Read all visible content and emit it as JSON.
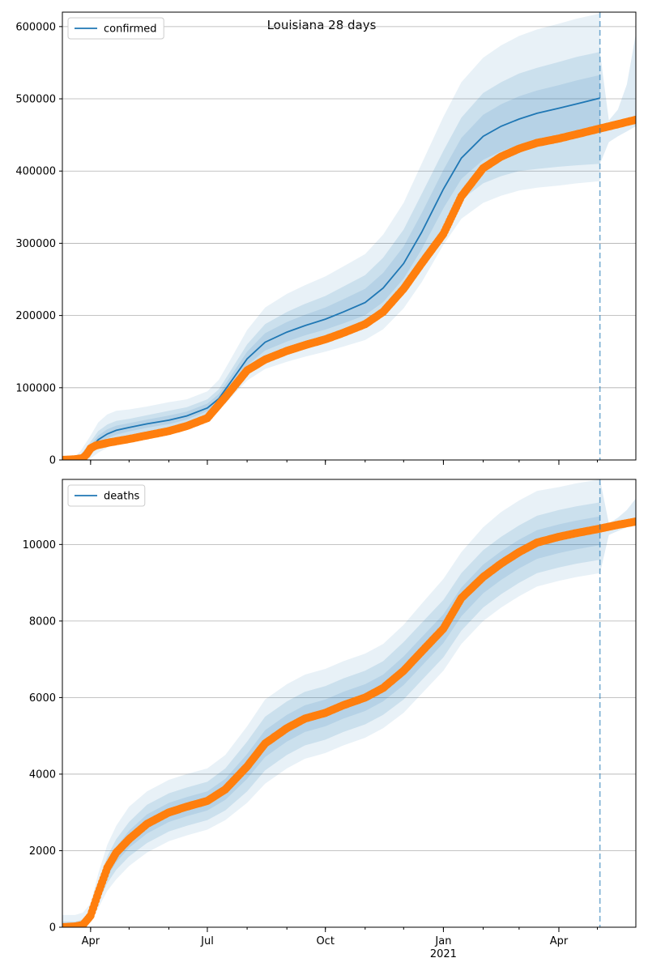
{
  "title": "Louisiana 28 days",
  "colors": {
    "model": "#1f77b4",
    "band": "#1f77b4",
    "observed": "#ff7f0e",
    "forecast_line": "#1f77b4",
    "grid": "#b0b0b0"
  },
  "x_axis": {
    "start": "2020-03-10",
    "end": "2021-05-31",
    "major_ticks": [
      {
        "date": "2020-04-01",
        "label": "Apr",
        "sub": ""
      },
      {
        "date": "2020-07-01",
        "label": "Jul",
        "sub": ""
      },
      {
        "date": "2020-10-01",
        "label": "Oct",
        "sub": ""
      },
      {
        "date": "2021-01-01",
        "label": "Jan",
        "sub": "2021"
      },
      {
        "date": "2021-04-01",
        "label": "Apr",
        "sub": ""
      }
    ]
  },
  "forecast_date": "2021-05-03",
  "chart_data": [
    {
      "type": "line",
      "series_name": "confirmed",
      "legend": "confirmed",
      "legend_position": "upper-left",
      "grid": "horizontal",
      "ylim": [
        0,
        620000
      ],
      "yticks": [
        0,
        100000,
        200000,
        300000,
        400000,
        500000,
        600000
      ],
      "model": {
        "x": [
          "2020-03-10",
          "2020-03-17",
          "2020-03-24",
          "2020-03-31",
          "2020-04-07",
          "2020-04-14",
          "2020-04-21",
          "2020-05-01",
          "2020-05-15",
          "2020-06-01",
          "2020-06-15",
          "2020-07-01",
          "2020-07-10",
          "2020-07-20",
          "2020-08-01",
          "2020-08-15",
          "2020-09-01",
          "2020-09-15",
          "2020-10-01",
          "2020-10-15",
          "2020-11-01",
          "2020-11-15",
          "2020-12-01",
          "2020-12-15",
          "2021-01-01",
          "2021-01-15",
          "2021-02-01",
          "2021-02-15",
          "2021-03-01",
          "2021-03-15",
          "2021-04-01",
          "2021-04-15",
          "2021-05-03"
        ],
        "y": [
          0,
          0,
          2000,
          14000,
          28000,
          36000,
          41000,
          45000,
          50000,
          55000,
          61000,
          72000,
          85000,
          110000,
          140000,
          163000,
          177000,
          186000,
          195000,
          205000,
          218000,
          238000,
          272000,
          315000,
          375000,
          418000,
          448000,
          462000,
          472000,
          480000,
          487000,
          493000,
          501000
        ],
        "bands": [
          {
            "lower": [
              0,
              0,
              0,
              6000,
              17000,
              24000,
              29000,
              34000,
              39000,
              44000,
              51000,
              63000,
              75000,
              97000,
              122000,
              140000,
              151000,
              159000,
              166000,
              173000,
              183000,
              199000,
              230000,
              268000,
              322000,
              360000,
              383000,
              393000,
              400000,
              403000,
              406000,
              408000,
              410000
            ],
            "upper": [
              0,
              0,
              7000,
              23000,
              40000,
              49000,
              54000,
              57000,
              62000,
              68000,
              73000,
              84000,
              98000,
              126000,
              160000,
              188000,
              205000,
              216000,
              227000,
              240000,
              256000,
              280000,
              319000,
              368000,
              428000,
              474000,
              508000,
              523000,
              535000,
              543000,
              551000,
              558000,
              565000
            ]
          },
          {
            "lower": [
              0,
              0,
              0,
              1000,
              10000,
              17000,
              22000,
              27000,
              32000,
              37000,
              44000,
              57000,
              68000,
              88000,
              110000,
              126000,
              136000,
              143000,
              150000,
              157000,
              166000,
              181000,
              210000,
              246000,
              298000,
              334000,
              356000,
              366000,
              373000,
              377000,
              380000,
              383000,
              386000
            ],
            "upper": [
              0,
              0,
              12000,
              31000,
              52000,
              63000,
              68000,
              70000,
              74000,
              80000,
              84000,
              95000,
              111000,
              142000,
              180000,
              211000,
              230000,
              242000,
              254000,
              268000,
              285000,
              312000,
              356000,
              410000,
              475000,
              523000,
              557000,
              574000,
              587000,
              596000,
              604000,
              611000,
              618000
            ]
          }
        ]
      },
      "observed": {
        "x": [
          "2020-03-10",
          "2020-03-20",
          "2020-03-26",
          "2020-03-29",
          "2020-04-01",
          "2020-04-05",
          "2020-04-15",
          "2020-05-01",
          "2020-05-15",
          "2020-06-01",
          "2020-06-15",
          "2020-07-01",
          "2020-07-15",
          "2020-08-01",
          "2020-08-15",
          "2020-09-01",
          "2020-09-15",
          "2020-10-01",
          "2020-10-15",
          "2020-11-01",
          "2020-11-15",
          "2020-12-01",
          "2020-12-15",
          "2021-01-01",
          "2021-01-15",
          "2021-02-01",
          "2021-02-15",
          "2021-03-01",
          "2021-03-15",
          "2021-04-01",
          "2021-04-15",
          "2021-05-01",
          "2021-05-15",
          "2021-05-31"
        ],
        "y": [
          0,
          1000,
          2500,
          8000,
          16000,
          20000,
          24000,
          29000,
          34000,
          40000,
          47000,
          58000,
          87000,
          124000,
          139000,
          151000,
          159000,
          167000,
          176000,
          188000,
          205000,
          237000,
          272000,
          313000,
          365000,
          404000,
          420000,
          431000,
          439000,
          445000,
          451000,
          458000,
          464000,
          471000
        ]
      },
      "projection": {
        "x": [
          "2021-05-03",
          "2021-05-10",
          "2021-05-17",
          "2021-05-24",
          "2021-05-31"
        ],
        "lower": [
          410000,
          440000,
          448000,
          455000,
          462000
        ],
        "upper": [
          565000,
          470000,
          485000,
          520000,
          590000
        ]
      }
    },
    {
      "type": "line",
      "series_name": "deaths",
      "legend": "deaths",
      "legend_position": "upper-left",
      "grid": "horizontal",
      "ylim": [
        0,
        11700
      ],
      "yticks": [
        0,
        2000,
        4000,
        6000,
        8000,
        10000
      ],
      "model": {
        "x": [
          "2020-03-10",
          "2020-03-20",
          "2020-03-26",
          "2020-04-01",
          "2020-04-07",
          "2020-04-14",
          "2020-04-21",
          "2020-05-01",
          "2020-05-15",
          "2020-06-01",
          "2020-06-15",
          "2020-07-01",
          "2020-07-15",
          "2020-08-01",
          "2020-08-15",
          "2020-09-01",
          "2020-09-15",
          "2020-10-01",
          "2020-10-15",
          "2020-11-01",
          "2020-11-15",
          "2020-12-01",
          "2020-12-15",
          "2021-01-01",
          "2021-01-15",
          "2021-02-01",
          "2021-02-15",
          "2021-03-01",
          "2021-03-15",
          "2021-04-01",
          "2021-04-15",
          "2021-05-03"
        ],
        "y": [
          0,
          20,
          60,
          300,
          900,
          1500,
          1900,
          2300,
          2700,
          3000,
          3150,
          3300,
          3600,
          4200,
          4800,
          5200,
          5450,
          5600,
          5800,
          6000,
          6250,
          6700,
          7200,
          7800,
          8500,
          9100,
          9450,
          9750,
          10000,
          10150,
          10250,
          10370
        ],
        "bands": [
          {
            "lower": [
              0,
              0,
              10,
              180,
              650,
              1150,
              1500,
              1850,
              2200,
              2500,
              2650,
              2800,
              3050,
              3550,
              4100,
              4500,
              4750,
              4900,
              5100,
              5300,
              5550,
              5950,
              6450,
              7050,
              7750,
              8350,
              8700,
              9000,
              9250,
              9400,
              9500,
              9600
            ],
            "upper": [
              150,
              150,
              200,
              450,
              1150,
              1850,
              2300,
              2750,
              3200,
              3500,
              3650,
              3800,
              4150,
              4850,
              5500,
              5900,
              6150,
              6300,
              6500,
              6700,
              6950,
              7450,
              7950,
              8550,
              9250,
              9850,
              10200,
              10500,
              10750,
              10900,
              11000,
              11100
            ]
          },
          {
            "lower": [
              0,
              0,
              0,
              120,
              500,
              950,
              1250,
              1600,
              1950,
              2250,
              2400,
              2550,
              2800,
              3250,
              3750,
              4150,
              4400,
              4550,
              4750,
              4950,
              5200,
              5600,
              6100,
              6700,
              7400,
              8000,
              8350,
              8650,
              8900,
              9050,
              9150,
              9250
            ],
            "upper": [
              320,
              320,
              380,
              620,
              1400,
              2150,
              2650,
              3150,
              3550,
              3850,
              4000,
              4150,
              4500,
              5250,
              5950,
              6350,
              6600,
              6750,
              6950,
              7150,
              7400,
              7900,
              8450,
              9100,
              9800,
              10450,
              10850,
              11150,
              11400,
              11500,
              11600,
              11700
            ]
          }
        ]
      },
      "observed": {
        "x": [
          "2020-03-10",
          "2020-03-20",
          "2020-03-26",
          "2020-04-01",
          "2020-04-07",
          "2020-04-14",
          "2020-04-21",
          "2020-05-01",
          "2020-05-15",
          "2020-06-01",
          "2020-06-15",
          "2020-07-01",
          "2020-07-15",
          "2020-08-01",
          "2020-08-15",
          "2020-09-01",
          "2020-09-15",
          "2020-10-01",
          "2020-10-15",
          "2020-11-01",
          "2020-11-15",
          "2020-12-01",
          "2020-12-15",
          "2021-01-01",
          "2021-01-15",
          "2021-02-01",
          "2021-02-15",
          "2021-03-01",
          "2021-03-15",
          "2021-04-01",
          "2021-04-15",
          "2021-05-01",
          "2021-05-15",
          "2021-05-31"
        ],
        "y": [
          0,
          20,
          60,
          300,
          900,
          1550,
          1950,
          2300,
          2700,
          3000,
          3150,
          3300,
          3600,
          4200,
          4800,
          5200,
          5450,
          5600,
          5800,
          6000,
          6250,
          6700,
          7200,
          7800,
          8600,
          9150,
          9500,
          9800,
          10050,
          10200,
          10300,
          10400,
          10500,
          10600
        ]
      },
      "projection": {
        "x": [
          "2021-05-03",
          "2021-05-10",
          "2021-05-17",
          "2021-05-24",
          "2021-05-31"
        ],
        "lower": [
          9250,
          10250,
          10350,
          10450,
          10550
        ],
        "upper": [
          11700,
          10550,
          10700,
          10900,
          11200
        ]
      }
    }
  ]
}
